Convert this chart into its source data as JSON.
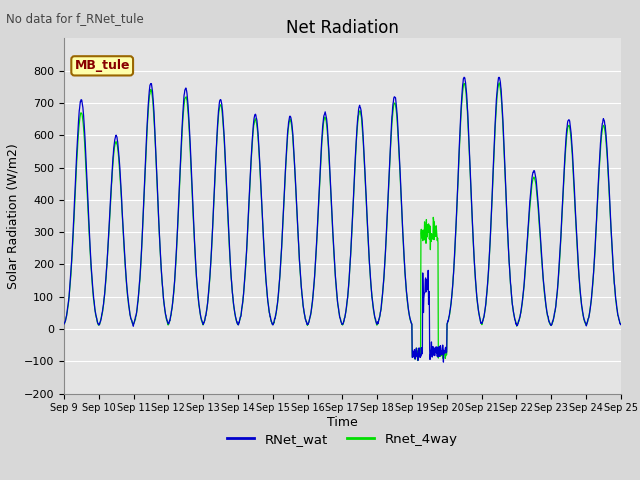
{
  "title": "Net Radiation",
  "xlabel": "Time",
  "ylabel": "Solar Radiation (W/m2)",
  "ylim": [
    -200,
    900
  ],
  "yticks": [
    -200,
    -100,
    0,
    100,
    200,
    300,
    400,
    500,
    600,
    700,
    800
  ],
  "background_color": "#d8d8d8",
  "plot_bg_color": "#e4e4e4",
  "line1_color": "#0000cc",
  "line2_color": "#00dd00",
  "legend_labels": [
    "RNet_wat",
    "Rnet_4way"
  ],
  "annotation_text": "No data for f_RNet_tule",
  "legend_box_label": "MB_tule",
  "legend_box_facecolor": "#ffffaa",
  "legend_box_edgecolor": "#996600",
  "legend_box_text_color": "#880000",
  "start_day": 9,
  "end_day": 24,
  "n_days": 16,
  "points_per_day": 96,
  "title_fontsize": 12,
  "axis_fontsize": 9,
  "tick_fontsize": 8
}
